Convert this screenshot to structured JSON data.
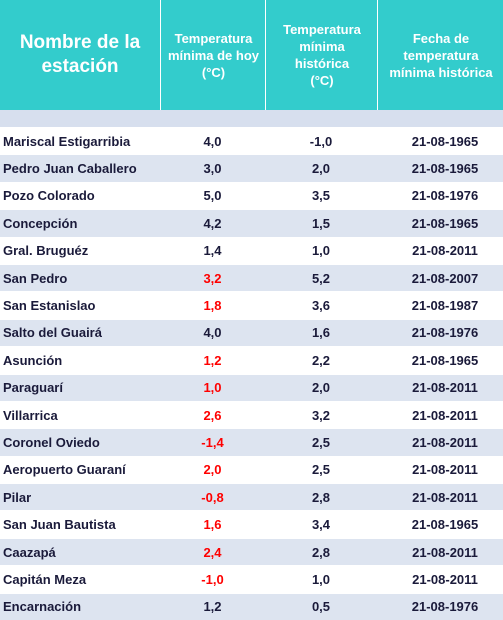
{
  "table": {
    "headers": [
      "Nombre de la\nestación",
      "Temperatura\nmínima de hoy\n(°C)",
      "Temperatura\nmínima\nhistórica\n(°C)",
      "Fecha  de\ntemperatura\nmínima histórica"
    ],
    "rows": [
      {
        "station": "Mariscal Estigarribia",
        "today": "4,0",
        "historic": "-1,0",
        "date": "21-08-1965",
        "today_red": false
      },
      {
        "station": "Pedro Juan Caballero",
        "today": "3,0",
        "historic": "2,0",
        "date": "21-08-1965",
        "today_red": false
      },
      {
        "station": "Pozo Colorado",
        "today": "5,0",
        "historic": "3,5",
        "date": "21-08-1976",
        "today_red": false
      },
      {
        "station": "Concepción",
        "today": "4,2",
        "historic": "1,5",
        "date": "21-08-1965",
        "today_red": false
      },
      {
        "station": "Gral. Bruguéz",
        "today": "1,4",
        "historic": "1,0",
        "date": "21-08-2011",
        "today_red": false
      },
      {
        "station": "San Pedro",
        "today": "3,2",
        "historic": "5,2",
        "date": "21-08-2007",
        "today_red": true
      },
      {
        "station": "San Estanislao",
        "today": "1,8",
        "historic": "3,6",
        "date": "21-08-1987",
        "today_red": true
      },
      {
        "station": "Salto del Guairá",
        "today": "4,0",
        "historic": "1,6",
        "date": "21-08-1976",
        "today_red": false
      },
      {
        "station": "Asunción",
        "today": "1,2",
        "historic": "2,2",
        "date": "21-08-1965",
        "today_red": true
      },
      {
        "station": "Paraguarí",
        "today": "1,0",
        "historic": "2,0",
        "date": "21-08-2011",
        "today_red": true
      },
      {
        "station": "Villarrica",
        "today": "2,6",
        "historic": "3,2",
        "date": "21-08-2011",
        "today_red": true
      },
      {
        "station": "Coronel Oviedo",
        "today": "-1,4",
        "historic": "2,5",
        "date": "21-08-2011",
        "today_red": true
      },
      {
        "station": "Aeropuerto Guaraní",
        "today": "2,0",
        "historic": "2,5",
        "date": "21-08-2011",
        "today_red": true
      },
      {
        "station": "Pilar",
        "today": "-0,8",
        "historic": "2,8",
        "date": "21-08-2011",
        "today_red": true
      },
      {
        "station": "San Juan Bautista",
        "today": "1,6",
        "historic": "3,4",
        "date": "21-08-1965",
        "today_red": true
      },
      {
        "station": "Caazapá",
        "today": "2,4",
        "historic": "2,8",
        "date": "21-08-2011",
        "today_red": true
      },
      {
        "station": "Capitán Meza",
        "today": "-1,0",
        "historic": "1,0",
        "date": "21-08-2011",
        "today_red": true
      },
      {
        "station": "Encarnación",
        "today": "1,2",
        "historic": "0,5",
        "date": "21-08-1976",
        "today_red": false
      }
    ]
  },
  "colors": {
    "header_bg": "#33cccc",
    "header_text": "#ffffff",
    "row_alt": "#dde4f0",
    "text": "#1a1a3a",
    "highlight": "#ff0000"
  }
}
